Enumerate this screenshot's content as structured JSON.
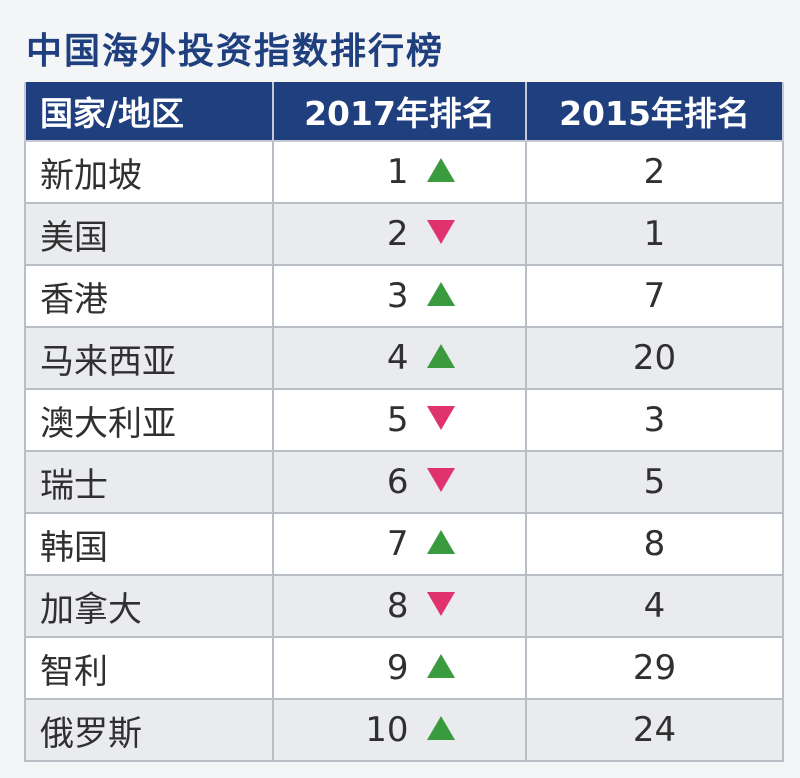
{
  "title": "中国海外投资指数排行榜",
  "table": {
    "headers": [
      "国家/地区",
      "2017年排名",
      "2015年排名"
    ],
    "rows": [
      {
        "region": "新加坡",
        "rank_2017": "1",
        "trend": "up",
        "rank_2015": "2"
      },
      {
        "region": "美国",
        "rank_2017": "2",
        "trend": "down",
        "rank_2015": "1"
      },
      {
        "region": "香港",
        "rank_2017": "3",
        "trend": "up",
        "rank_2015": "7"
      },
      {
        "region": "马来西亚",
        "rank_2017": "4",
        "trend": "up",
        "rank_2015": "20"
      },
      {
        "region": "澳大利亚",
        "rank_2017": "5",
        "trend": "down",
        "rank_2015": "3"
      },
      {
        "region": "瑞士",
        "rank_2017": "6",
        "trend": "down",
        "rank_2015": "5"
      },
      {
        "region": "韩国",
        "rank_2017": "7",
        "trend": "up",
        "rank_2015": "8"
      },
      {
        "region": "加拿大",
        "rank_2017": "8",
        "trend": "down",
        "rank_2015": "4"
      },
      {
        "region": "智利",
        "rank_2017": "9",
        "trend": "up",
        "rank_2015": "29"
      },
      {
        "region": "俄罗斯",
        "rank_2017": "10",
        "trend": "up",
        "rank_2015": "24"
      }
    ]
  },
  "colors": {
    "header_bg": "#1f3f7e",
    "title": "#1f3f7e",
    "up": "#3a9a3e",
    "down": "#e0336e"
  },
  "icons": {
    "up": "triangle-up-icon",
    "down": "triangle-down-icon"
  }
}
